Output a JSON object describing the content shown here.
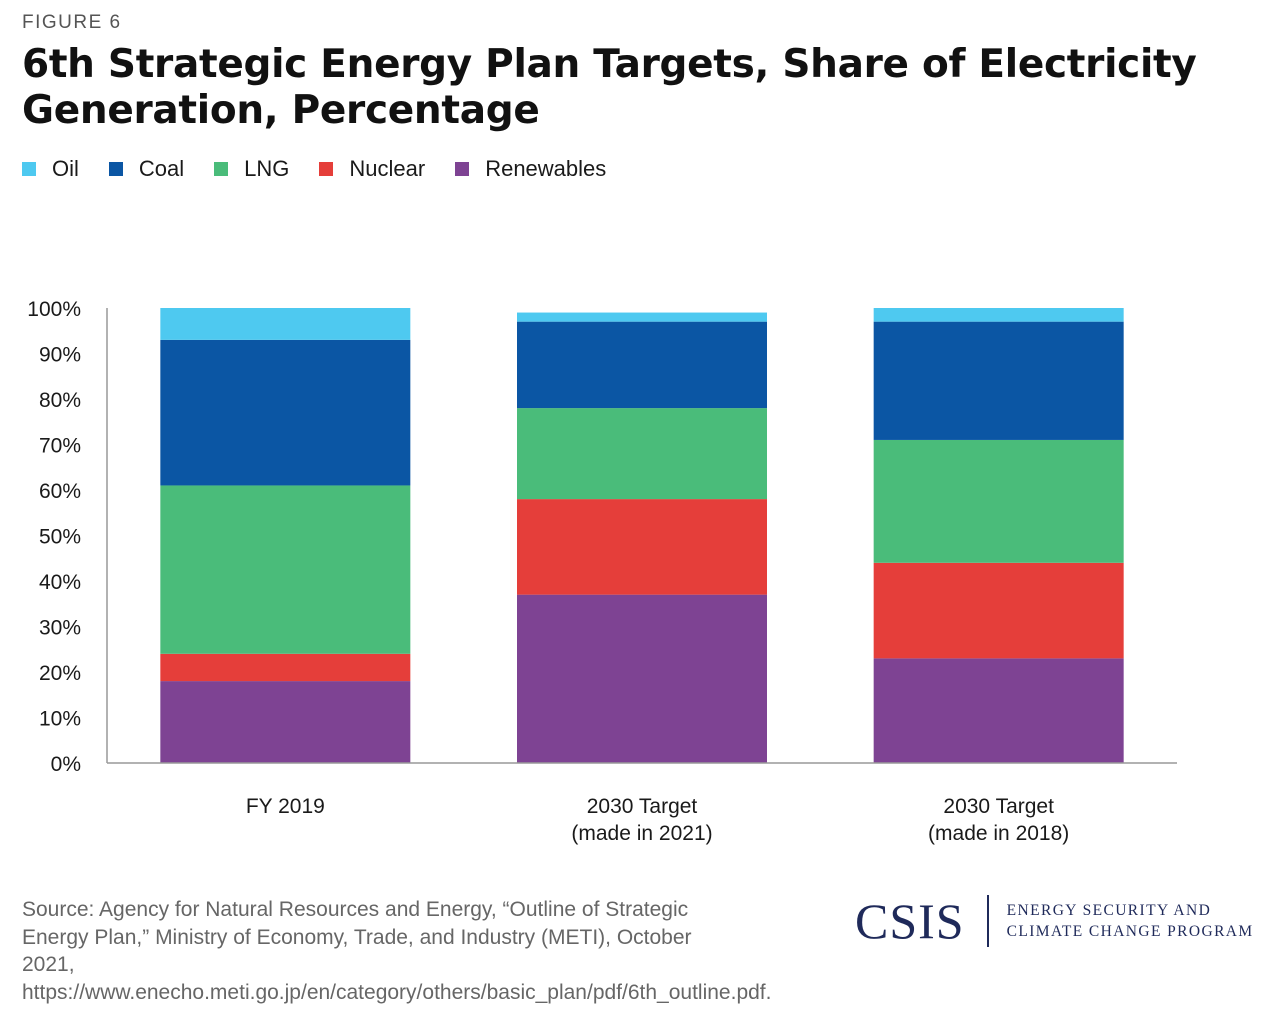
{
  "figure_label": "FIGURE 6",
  "title": "6th Strategic Energy Plan Targets, Share of Electricity Generation, Percentage",
  "legend": [
    {
      "label": "Oil",
      "color": "#4ec9f0"
    },
    {
      "label": "Coal",
      "color": "#0b56a4"
    },
    {
      "label": "LNG",
      "color": "#4abc7a"
    },
    {
      "label": "Nuclear",
      "color": "#e53e3a"
    },
    {
      "label": "Renewables",
      "color": "#7e4393"
    }
  ],
  "chart_data": {
    "type": "bar",
    "stacked": true,
    "title": "6th Strategic Energy Plan Targets, Share of Electricity Generation, Percentage",
    "xlabel": "",
    "ylabel": "",
    "ylim": [
      0,
      100
    ],
    "yticks": [
      "0%",
      "10%",
      "20%",
      "30%",
      "40%",
      "50%",
      "60%",
      "70%",
      "80%",
      "90%",
      "100%"
    ],
    "grid": false,
    "legend_position": "top-left",
    "categories": [
      [
        "FY 2019"
      ],
      [
        "2030 Target",
        "(made in 2021)"
      ],
      [
        "2030 Target",
        "(made in 2018)"
      ]
    ],
    "series": [
      {
        "name": "Renewables",
        "color": "#7e4393",
        "values": [
          18,
          37,
          23
        ]
      },
      {
        "name": "Nuclear",
        "color": "#e53e3a",
        "values": [
          6,
          21,
          21
        ]
      },
      {
        "name": "LNG",
        "color": "#4abc7a",
        "values": [
          37,
          20,
          27
        ]
      },
      {
        "name": "Coal",
        "color": "#0b56a4",
        "values": [
          32,
          19,
          26
        ]
      },
      {
        "name": "Oil",
        "color": "#4ec9f0",
        "values": [
          7,
          2,
          3
        ]
      }
    ]
  },
  "source": "Source: Agency for Natural Resources and Energy, “Outline of Strategic Energy Plan,” Ministry of Economy, Trade, and Industry (METI), October 2021, https://www.enecho.meti.go.jp/en/category/others/basic_plan/pdf/6th_outline.pdf.",
  "logo": {
    "mark": "CSIS",
    "line1": "ENERGY SECURITY AND",
    "line2": "CLIMATE CHANGE PROGRAM"
  }
}
